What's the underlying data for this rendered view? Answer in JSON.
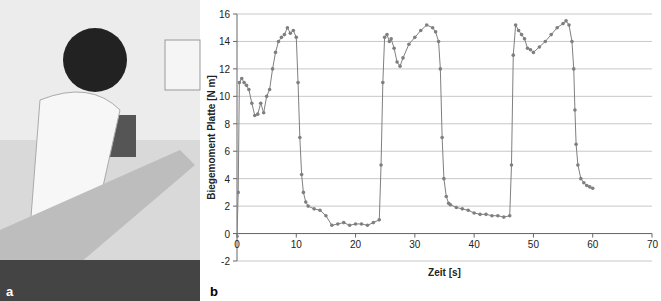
{
  "panel_labels": [
    "a",
    "b"
  ],
  "chart_data": {
    "type": "line",
    "marker": "circle",
    "color": "#7f7f7f",
    "grid": true,
    "xlabel": "Zeit [s]",
    "ylabel": "Biegemoment Platte [N m]",
    "xlim": [
      0,
      70
    ],
    "ylim": [
      -2,
      16
    ],
    "xticks": [
      0,
      10,
      20,
      30,
      40,
      50,
      60,
      70
    ],
    "yticks": [
      -2,
      0,
      2,
      4,
      6,
      8,
      10,
      12,
      14,
      16
    ],
    "x": [
      0,
      0.2,
      0.4,
      0.8,
      1.2,
      1.6,
      2,
      2.5,
      3,
      3.5,
      4,
      4.5,
      5,
      5.5,
      6,
      6.5,
      7,
      7.5,
      8,
      8.5,
      9,
      9.5,
      10,
      10.3,
      10.6,
      10.9,
      11.2,
      11.6,
      12,
      13,
      14,
      15,
      16,
      17,
      18,
      19,
      20,
      21,
      22,
      23,
      24,
      24.3,
      24.6,
      24.9,
      25.3,
      25.7,
      26,
      26.5,
      27,
      27.5,
      28,
      29,
      30,
      31,
      32,
      33,
      33.5,
      34,
      34.3,
      34.6,
      34.9,
      35.3,
      35.7,
      36,
      37,
      38,
      39,
      40,
      41,
      42,
      43,
      44,
      45,
      46,
      46.3,
      46.6,
      47,
      47.5,
      48,
      48.5,
      49,
      49.5,
      50,
      51,
      52,
      53,
      54,
      55,
      55.5,
      56,
      56.5,
      56.8,
      57,
      57.2,
      57.5,
      58,
      58.5,
      59,
      59.5,
      60
    ],
    "values": [
      -0.2,
      3,
      11,
      11.3,
      11,
      10.8,
      10.5,
      9.5,
      8.6,
      8.7,
      9.5,
      8.8,
      10,
      10.5,
      12,
      13.2,
      14,
      14.3,
      14.5,
      15,
      14.6,
      14.8,
      14.3,
      11,
      7,
      4.3,
      3,
      2.3,
      2,
      1.8,
      1.7,
      1.3,
      0.6,
      0.7,
      0.8,
      0.6,
      0.7,
      0.7,
      0.6,
      0.8,
      1,
      5,
      11,
      14.3,
      14.5,
      14,
      14.2,
      13.5,
      12.5,
      12.2,
      12.8,
      13.8,
      14.3,
      14.8,
      15.2,
      15,
      14.7,
      14,
      12,
      7,
      4,
      2.7,
      2.2,
      2.1,
      1.9,
      1.8,
      1.7,
      1.5,
      1.4,
      1.4,
      1.3,
      1.3,
      1.2,
      1.3,
      5,
      13,
      15.2,
      14.8,
      14.5,
      14.2,
      13.5,
      13.4,
      13.2,
      13.6,
      14,
      14.5,
      15,
      15.3,
      15.5,
      15.2,
      14,
      12,
      9,
      6.5,
      5,
      4,
      3.7,
      3.5,
      3.4,
      3.3
    ]
  }
}
